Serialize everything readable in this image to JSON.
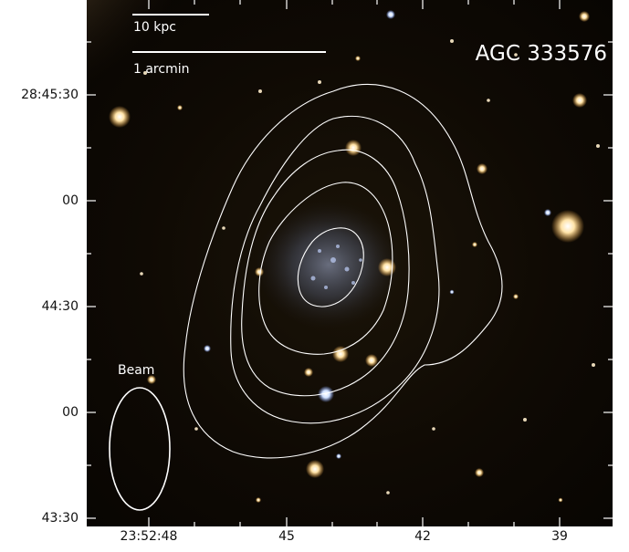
{
  "image": {
    "object_name": "AGC 333576",
    "beam_label": "Beam",
    "scale_bars": [
      {
        "label": "10 kpc"
      },
      {
        "label": "1 arcmin"
      }
    ]
  },
  "axes": {
    "y_ticks": [
      "28:45:30",
      "00",
      "44:30",
      "00",
      "43:30"
    ],
    "x_ticks": [
      "23:52:48",
      "45",
      "42",
      "39"
    ]
  },
  "colors": {
    "contour": "#ffffff",
    "background": "#0f0a04",
    "galaxy_glow": "#7f8fb8",
    "star_yellow": "#ffd27a"
  }
}
